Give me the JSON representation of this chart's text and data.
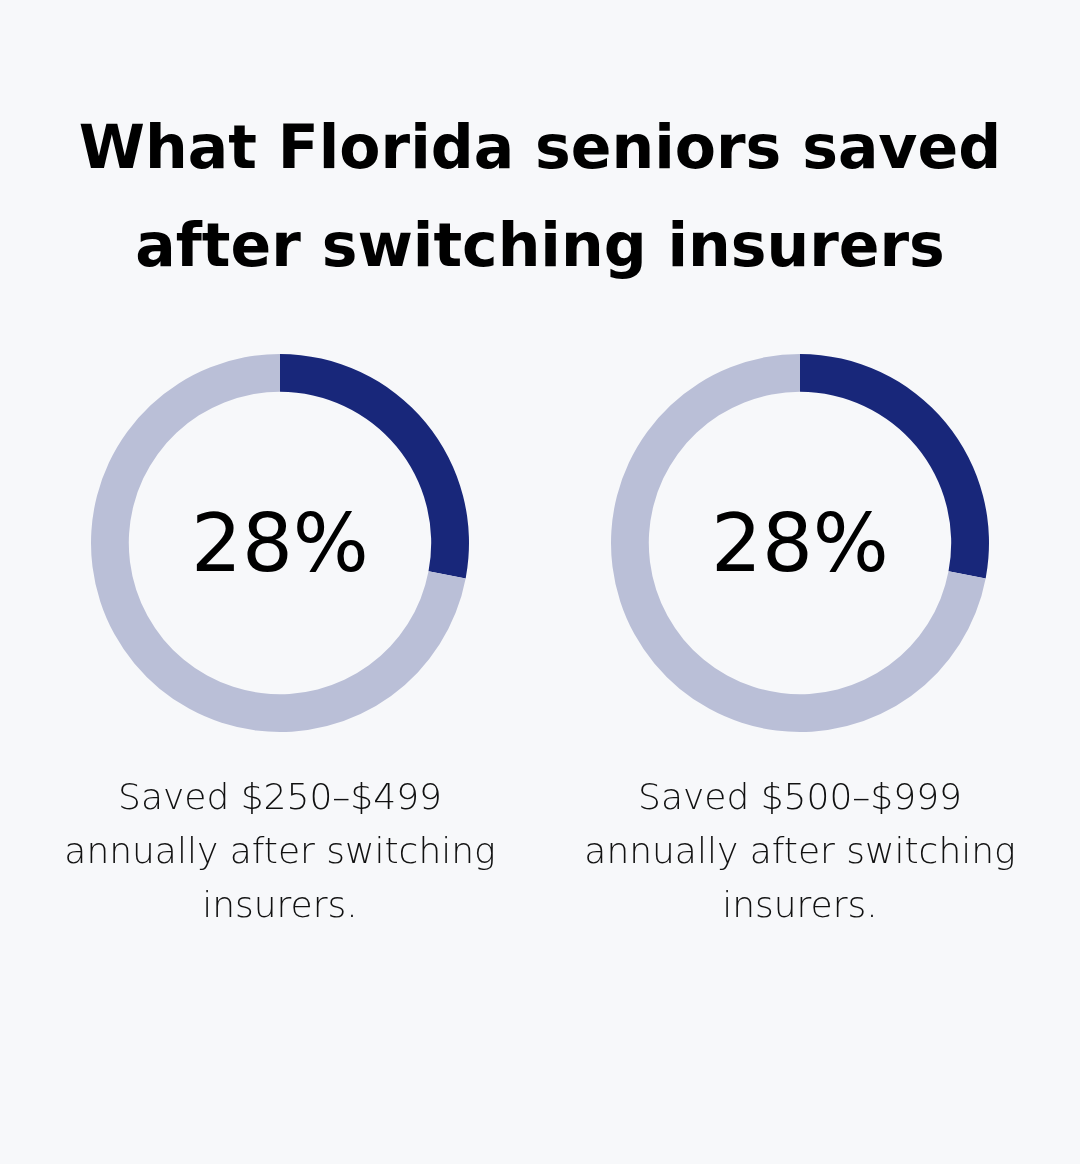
{
  "chart_data": [
    {
      "type": "donut",
      "title": "What Florida seniors saved after switching insurers",
      "categories": [
        null,
        null
      ],
      "values": [
        28,
        72
      ],
      "colors": [
        "#18277a",
        "#babfd7"
      ],
      "annotations": [
        "28%",
        "Saved $250–$499 annually after switching insurers."
      ]
    },
    {
      "type": "donut",
      "categories": [
        null,
        null
      ],
      "values": [
        28,
        72
      ],
      "colors": [
        "#18277a",
        "#babfd7"
      ],
      "annotations": [
        "28%",
        "Saved $500–$999 annually after switching insurers."
      ]
    }
  ]
}
